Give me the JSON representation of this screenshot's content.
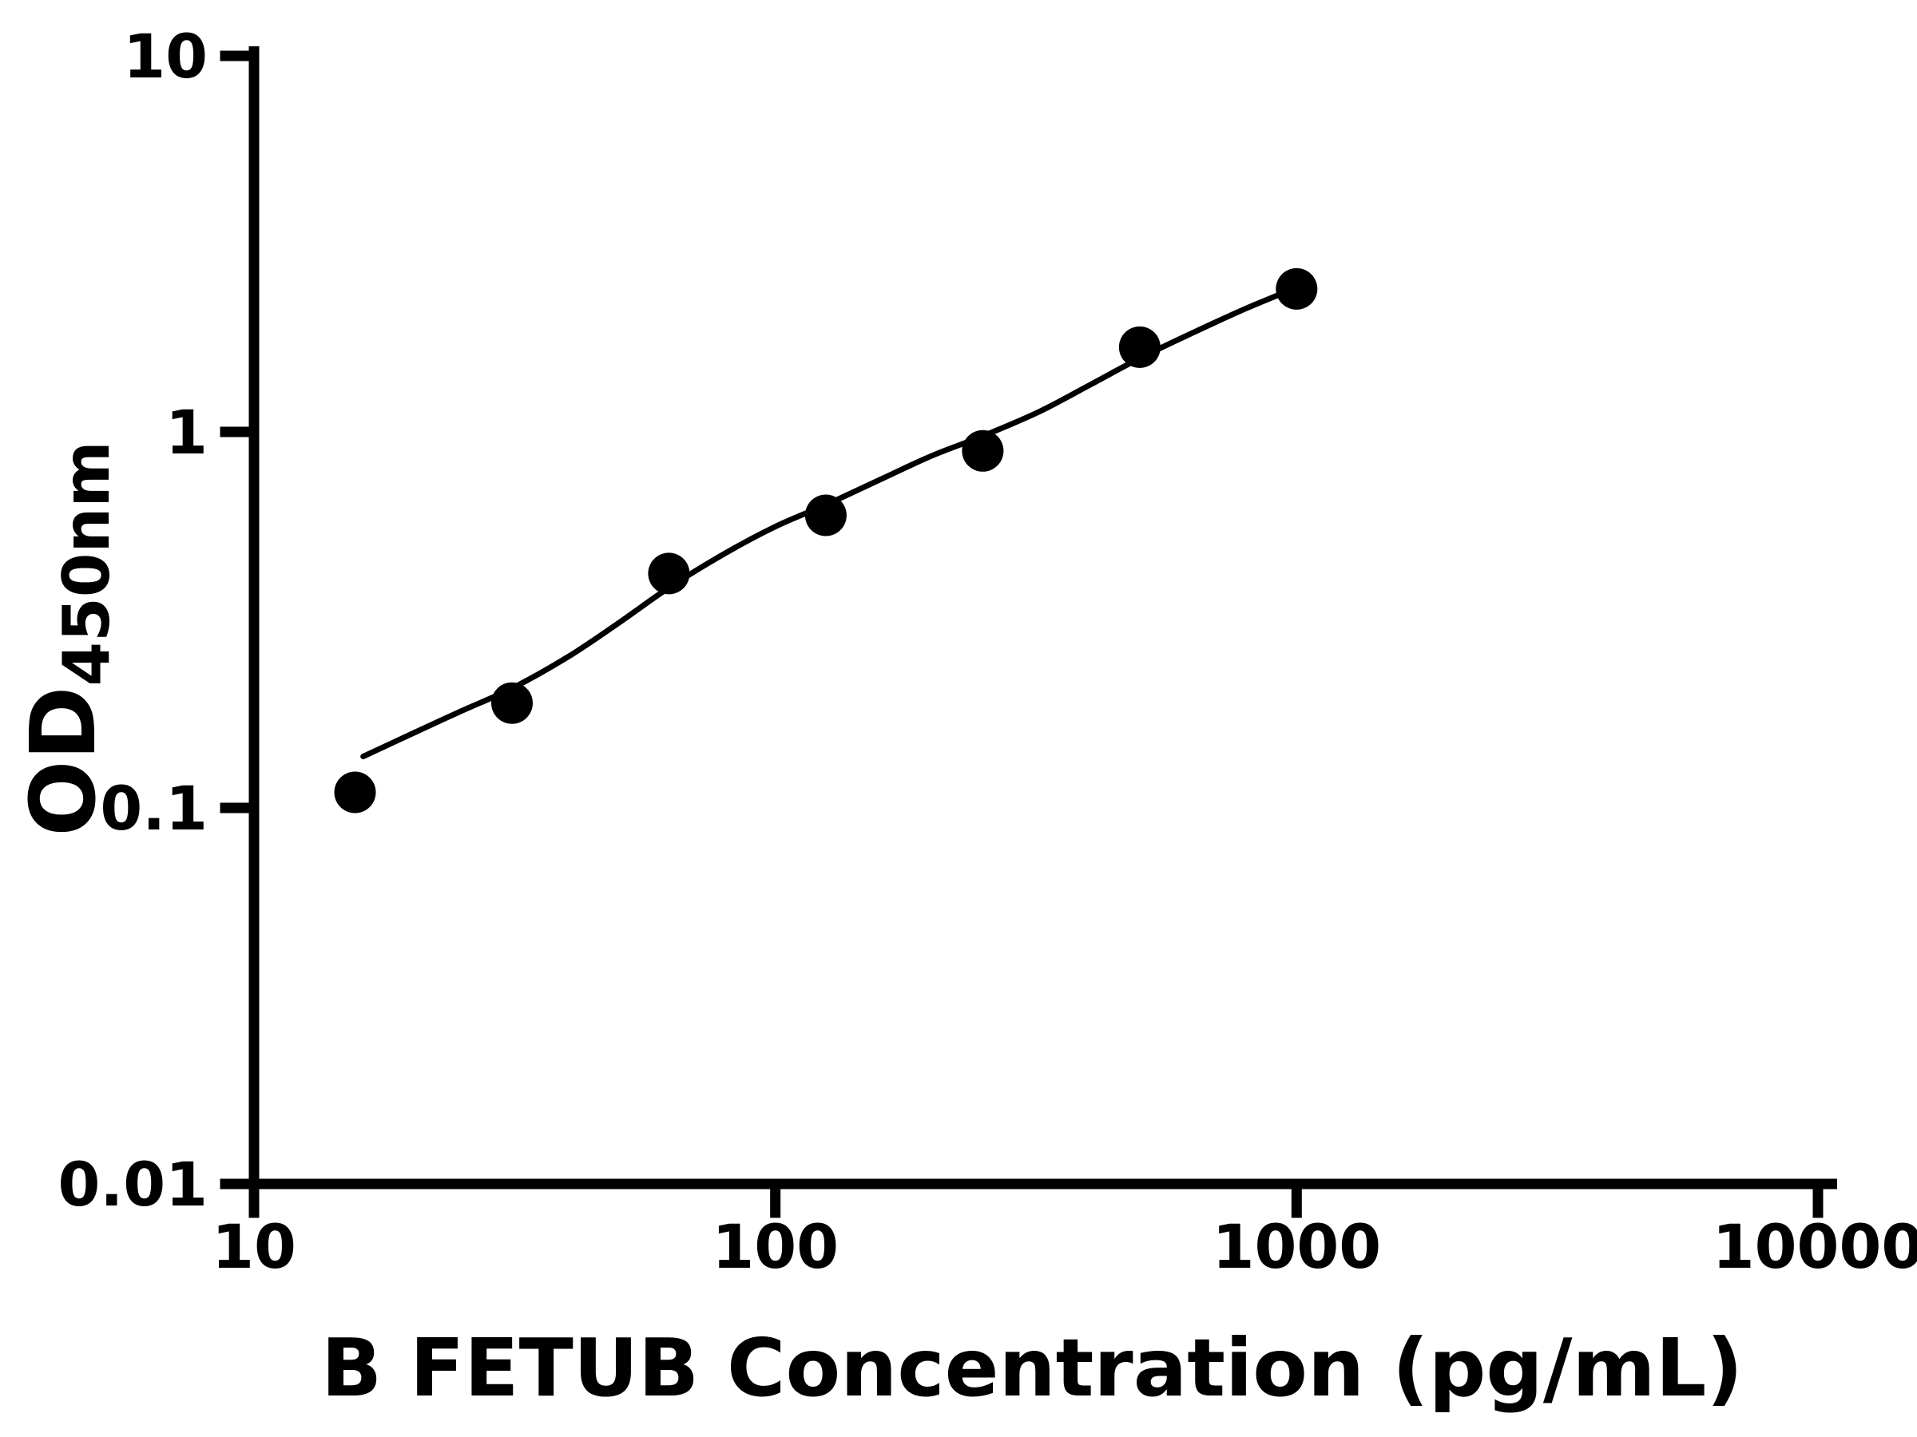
{
  "chart_data": {
    "type": "scatter",
    "title": "",
    "xlabel": "B FETUB Concentration (pg/mL)",
    "ylabel_main": "OD",
    "ylabel_sub": "450nm",
    "x_scale": "log",
    "y_scale": "log",
    "xlim": [
      10,
      10000
    ],
    "ylim": [
      0.01,
      10
    ],
    "x_ticks": [
      10,
      100,
      1000,
      10000
    ],
    "x_tick_labels": [
      "10",
      "100",
      "1000",
      "10000"
    ],
    "y_ticks": [
      0.01,
      0.1,
      1,
      10
    ],
    "y_tick_labels": [
      "0.01",
      "0.1",
      "1",
      "10"
    ],
    "grid": false,
    "legend": "none",
    "background_color": "#ffffff",
    "axis_color": "#000000",
    "series": [
      {
        "name": "standard-points",
        "type": "scatter",
        "marker": "filled-circle",
        "color": "#000000",
        "points": [
          {
            "x": 15.625,
            "y": 0.11
          },
          {
            "x": 31.25,
            "y": 0.19
          },
          {
            "x": 62.5,
            "y": 0.42
          },
          {
            "x": 125,
            "y": 0.6
          },
          {
            "x": 250,
            "y": 0.89
          },
          {
            "x": 500,
            "y": 1.68
          },
          {
            "x": 1000,
            "y": 2.4
          }
        ]
      },
      {
        "name": "fit-curve",
        "type": "line",
        "color": "#000000",
        "points": [
          {
            "x": 16.2,
            "y": 0.137
          },
          {
            "x": 20,
            "y": 0.157
          },
          {
            "x": 25,
            "y": 0.181
          },
          {
            "x": 31.25,
            "y": 0.208
          },
          {
            "x": 40,
            "y": 0.252
          },
          {
            "x": 50,
            "y": 0.31
          },
          {
            "x": 62.5,
            "y": 0.385
          },
          {
            "x": 80,
            "y": 0.475
          },
          {
            "x": 100,
            "y": 0.56
          },
          {
            "x": 125,
            "y": 0.64
          },
          {
            "x": 160,
            "y": 0.75
          },
          {
            "x": 200,
            "y": 0.865
          },
          {
            "x": 250,
            "y": 0.975
          },
          {
            "x": 320,
            "y": 1.13
          },
          {
            "x": 400,
            "y": 1.33
          },
          {
            "x": 500,
            "y": 1.57
          },
          {
            "x": 640,
            "y": 1.85
          },
          {
            "x": 800,
            "y": 2.13
          },
          {
            "x": 1000,
            "y": 2.42
          }
        ]
      }
    ]
  }
}
